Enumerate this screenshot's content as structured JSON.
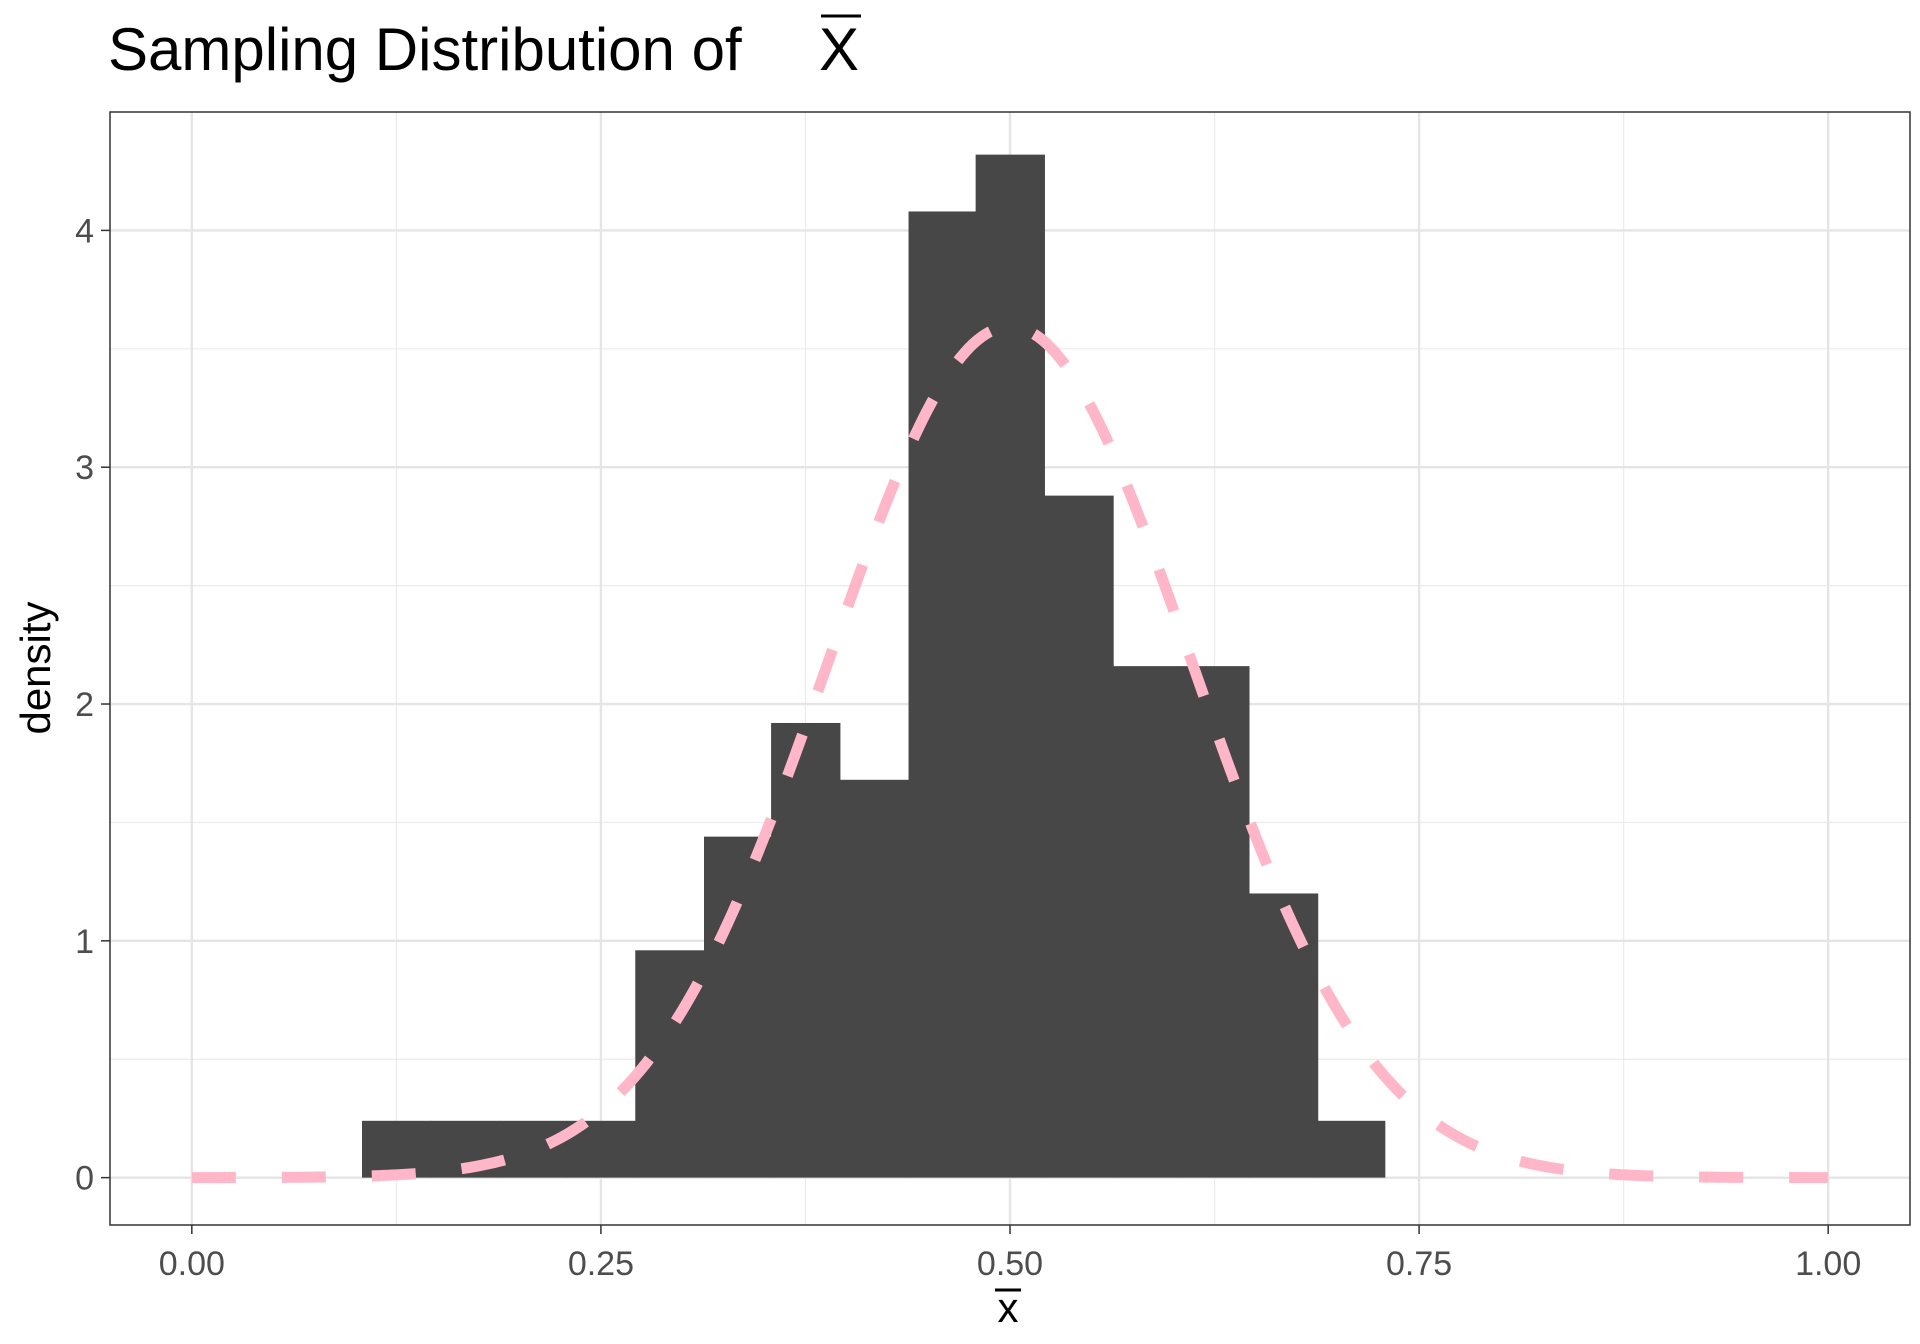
{
  "title": "Sampling Distribution of",
  "title_symbol": "X",
  "chart_data": {
    "type": "bar",
    "subtype": "histogram with normal density overlay",
    "xlabel": "x",
    "ylabel": "density",
    "xlim": [
      -0.05,
      1.05
    ],
    "ylim": [
      -0.2,
      4.5
    ],
    "x_ticks": [
      0.0,
      0.25,
      0.5,
      0.75,
      1.0
    ],
    "x_tick_labels": [
      "0.00",
      "0.25",
      "0.50",
      "0.75",
      "1.00"
    ],
    "y_ticks": [
      0,
      1,
      2,
      3,
      4
    ],
    "y_tick_labels": [
      "0",
      "1",
      "2",
      "3",
      "4"
    ],
    "grid": true,
    "bar_color": "#474747",
    "bins": [
      {
        "x0": 0.104,
        "x1": 0.146,
        "density": 0.24
      },
      {
        "x0": 0.146,
        "x1": 0.188,
        "density": 0.24
      },
      {
        "x0": 0.188,
        "x1": 0.229,
        "density": 0.24
      },
      {
        "x0": 0.229,
        "x1": 0.271,
        "density": 0.24
      },
      {
        "x0": 0.271,
        "x1": 0.313,
        "density": 0.96
      },
      {
        "x0": 0.313,
        "x1": 0.354,
        "density": 1.44
      },
      {
        "x0": 0.354,
        "x1": 0.396,
        "density": 1.92
      },
      {
        "x0": 0.396,
        "x1": 0.438,
        "density": 1.68
      },
      {
        "x0": 0.438,
        "x1": 0.479,
        "density": 4.08
      },
      {
        "x0": 0.479,
        "x1": 0.521,
        "density": 4.32
      },
      {
        "x0": 0.521,
        "x1": 0.563,
        "density": 2.88
      },
      {
        "x0": 0.563,
        "x1": 0.604,
        "density": 2.16
      },
      {
        "x0": 0.604,
        "x1": 0.646,
        "density": 2.16
      },
      {
        "x0": 0.646,
        "x1": 0.688,
        "density": 1.2
      },
      {
        "x0": 0.688,
        "x1": 0.729,
        "density": 0.24
      }
    ],
    "curve": {
      "type": "normal",
      "mean": 0.5,
      "sd": 0.111,
      "x_range": [
        0.0,
        1.0
      ],
      "color": "#ffb6c8",
      "style": "dashed"
    }
  }
}
